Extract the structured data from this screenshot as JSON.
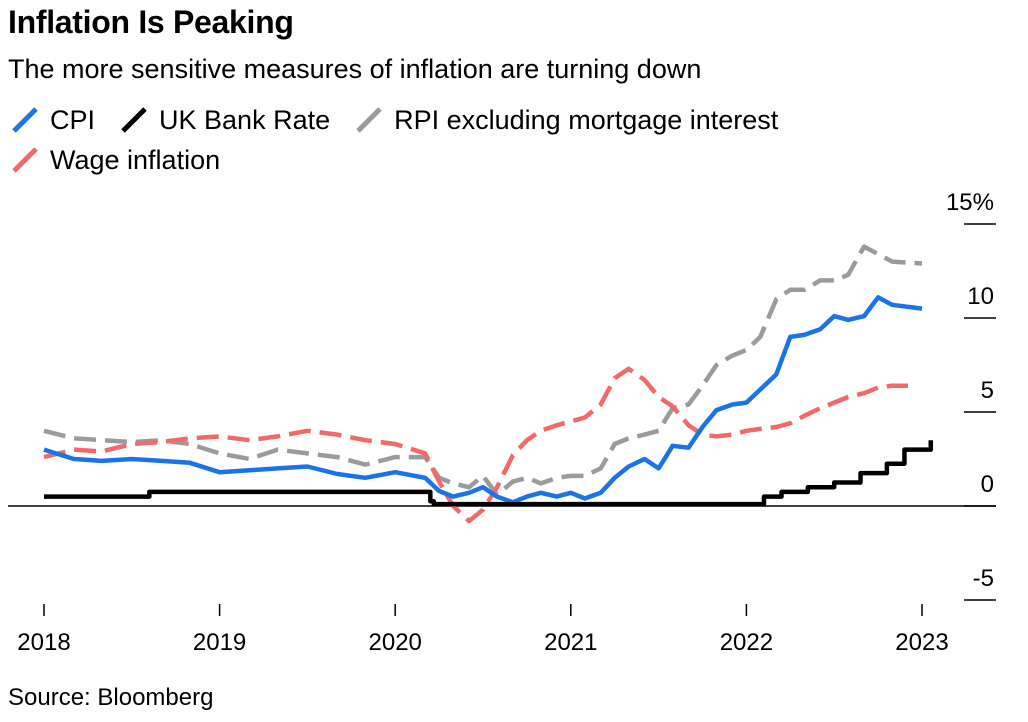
{
  "title": "Inflation Is Peaking",
  "subtitle": "The more sensitive measures of inflation are turning down",
  "source": "Source: Bloomberg",
  "colors": {
    "CPI": "#1a74e8",
    "UK Bank Rate": "#000000",
    "RPI excluding mortgage interest": "#9b9b9b",
    "Wage inflation": "#f2696b"
  },
  "chart_data": {
    "type": "line",
    "title": "Inflation Is Peaking",
    "subtitle": "The more sensitive measures of inflation are turning down",
    "xlabel": "",
    "ylabel": "",
    "x_ticks": [
      "2018",
      "2019",
      "2020",
      "2021",
      "2022",
      "2023"
    ],
    "y_ticks": [
      "15%",
      "10",
      "5",
      "0",
      "-5"
    ],
    "ylim": [
      -5,
      15
    ],
    "xlim": [
      2018,
      2023
    ],
    "grid": false,
    "legend_position": "top-left",
    "series": [
      {
        "name": "CPI",
        "x": [
          2018.0,
          2018.17,
          2018.33,
          2018.5,
          2018.67,
          2018.83,
          2019.0,
          2019.17,
          2019.33,
          2019.5,
          2019.67,
          2019.83,
          2020.0,
          2020.17,
          2020.25,
          2020.33,
          2020.42,
          2020.5,
          2020.58,
          2020.67,
          2020.75,
          2020.83,
          2020.92,
          2021.0,
          2021.08,
          2021.17,
          2021.25,
          2021.33,
          2021.42,
          2021.5,
          2021.58,
          2021.67,
          2021.75,
          2021.83,
          2021.92,
          2022.0,
          2022.08,
          2022.17,
          2022.25,
          2022.33,
          2022.42,
          2022.5,
          2022.58,
          2022.67,
          2022.75,
          2022.83,
          2023.0
        ],
        "y": [
          3.0,
          2.5,
          2.4,
          2.5,
          2.4,
          2.3,
          1.8,
          1.9,
          2.0,
          2.1,
          1.7,
          1.5,
          1.8,
          1.5,
          0.8,
          0.5,
          0.7,
          1.0,
          0.5,
          0.2,
          0.5,
          0.7,
          0.5,
          0.7,
          0.4,
          0.7,
          1.5,
          2.1,
          2.5,
          2.0,
          3.2,
          3.1,
          4.2,
          5.1,
          5.4,
          5.5,
          6.2,
          7.0,
          9.0,
          9.1,
          9.4,
          10.1,
          9.9,
          10.1,
          11.1,
          10.7,
          10.5
        ]
      },
      {
        "name": "UK Bank Rate",
        "x": [
          2018.0,
          2018.5,
          2018.6,
          2020.17,
          2020.2,
          2020.22,
          2021.95,
          2022.1,
          2022.2,
          2022.35,
          2022.5,
          2022.65,
          2022.8,
          2022.9,
          2023.05
        ],
        "y": [
          0.5,
          0.5,
          0.75,
          0.75,
          0.25,
          0.1,
          0.1,
          0.5,
          0.75,
          1.0,
          1.25,
          1.75,
          2.25,
          3.0,
          3.5
        ]
      },
      {
        "name": "RPI excluding mortgage interest",
        "x": [
          2018.0,
          2018.17,
          2018.33,
          2018.5,
          2018.67,
          2018.83,
          2019.0,
          2019.17,
          2019.33,
          2019.5,
          2019.67,
          2019.83,
          2020.0,
          2020.17,
          2020.25,
          2020.33,
          2020.42,
          2020.5,
          2020.58,
          2020.67,
          2020.75,
          2020.83,
          2020.92,
          2021.0,
          2021.08,
          2021.17,
          2021.25,
          2021.33,
          2021.42,
          2021.5,
          2021.58,
          2021.67,
          2021.75,
          2021.83,
          2021.92,
          2022.0,
          2022.08,
          2022.17,
          2022.25,
          2022.33,
          2022.42,
          2022.5,
          2022.58,
          2022.67,
          2022.75,
          2022.83,
          2023.0
        ],
        "y": [
          4.0,
          3.6,
          3.5,
          3.4,
          3.5,
          3.3,
          2.8,
          2.5,
          3.0,
          2.8,
          2.6,
          2.2,
          2.6,
          2.6,
          1.5,
          1.2,
          1.0,
          1.6,
          0.6,
          1.3,
          1.5,
          1.2,
          1.5,
          1.6,
          1.6,
          2.0,
          3.3,
          3.6,
          3.8,
          4.0,
          5.2,
          5.4,
          6.4,
          7.5,
          8.0,
          8.3,
          9.0,
          11.0,
          11.5,
          11.5,
          12.0,
          12.0,
          12.3,
          13.8,
          13.4,
          13.0,
          12.9
        ],
        "style": "dashed-segments"
      },
      {
        "name": "Wage inflation",
        "x": [
          2018.0,
          2018.17,
          2018.33,
          2018.5,
          2018.67,
          2018.83,
          2019.0,
          2019.17,
          2019.33,
          2019.5,
          2019.67,
          2019.83,
          2020.0,
          2020.17,
          2020.25,
          2020.33,
          2020.42,
          2020.5,
          2020.58,
          2020.67,
          2020.75,
          2020.83,
          2020.92,
          2021.0,
          2021.08,
          2021.17,
          2021.25,
          2021.33,
          2021.42,
          2021.5,
          2021.58,
          2021.67,
          2021.75,
          2021.83,
          2021.92,
          2022.0,
          2022.08,
          2022.17,
          2022.25,
          2022.33,
          2022.42,
          2022.5,
          2022.58,
          2022.67,
          2022.75,
          2022.83,
          2022.92
        ],
        "y": [
          2.6,
          3.0,
          2.9,
          3.3,
          3.4,
          3.6,
          3.7,
          3.5,
          3.7,
          4.0,
          3.8,
          3.5,
          3.3,
          2.8,
          1.3,
          0.0,
          -0.8,
          -0.2,
          1.0,
          2.7,
          3.5,
          4.0,
          4.3,
          4.5,
          4.7,
          5.4,
          6.8,
          7.3,
          6.7,
          5.8,
          5.3,
          4.3,
          3.8,
          3.7,
          3.8,
          4.0,
          4.1,
          4.2,
          4.4,
          4.8,
          5.2,
          5.5,
          5.8,
          6.0,
          6.3,
          6.4,
          6.4
        ],
        "style": "dashed-segments"
      }
    ]
  }
}
